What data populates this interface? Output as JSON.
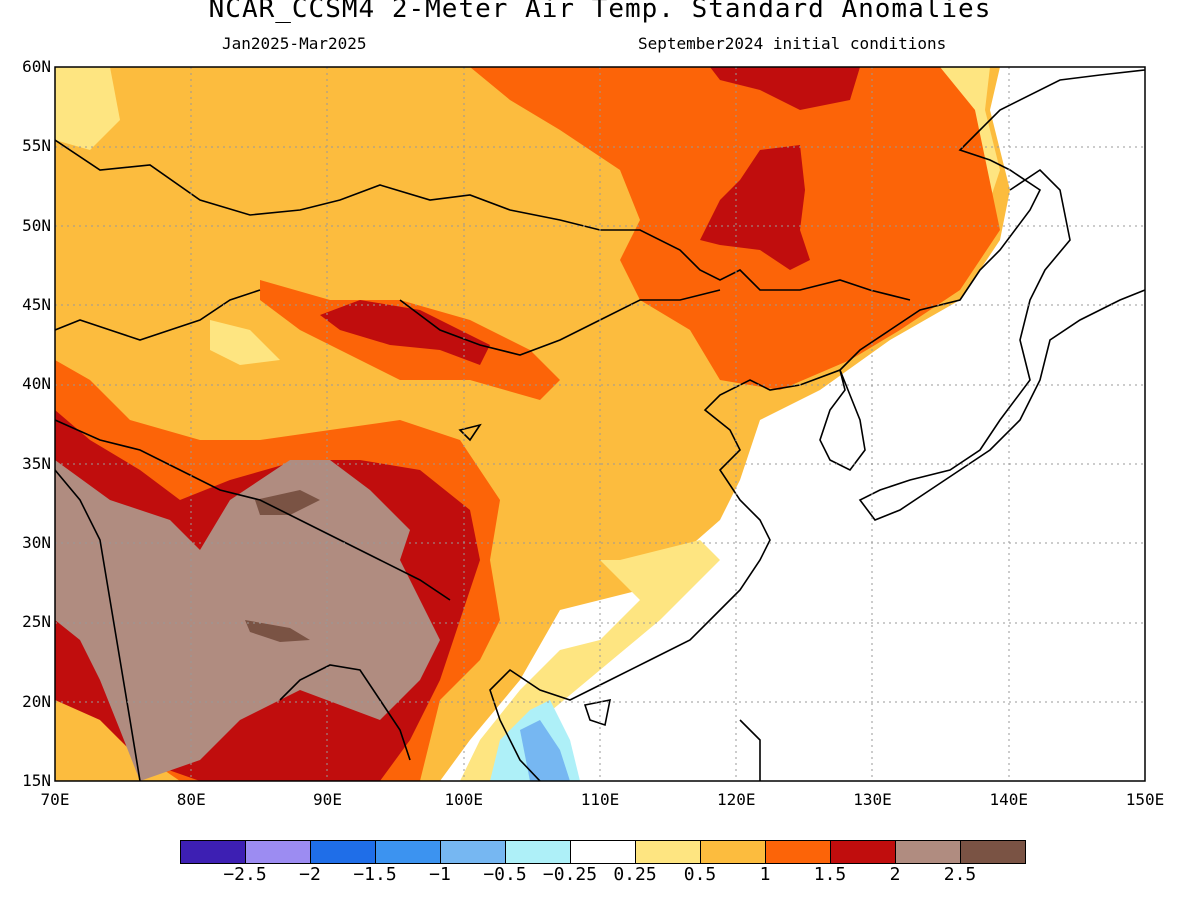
{
  "title": "NCAR_CCSM4 2-Meter Air Temp. Standard Anomalies",
  "subtitle_left": "Jan2025-Mar2025",
  "subtitle_right": "September2024 initial conditions",
  "latitude_labels": [
    "60N",
    "55N",
    "50N",
    "45N",
    "40N",
    "35N",
    "30N",
    "25N",
    "20N",
    "15N"
  ],
  "longitude_labels": [
    "70E",
    "80E",
    "90E",
    "100E",
    "110E",
    "120E",
    "130E",
    "140E",
    "150E"
  ],
  "map_extent": {
    "lon_min": 70,
    "lon_max": 150,
    "lat_min": 15,
    "lat_max": 60
  },
  "colorbar": {
    "colors": [
      "#3d1fb3",
      "#9c8cf2",
      "#1f6ee8",
      "#3c93f0",
      "#76b7f2",
      "#aef0f8",
      "#ffffff",
      "#fee581",
      "#fcbc3e",
      "#fc6408",
      "#c00d0d",
      "#b08c80",
      "#7a5344"
    ],
    "labels": [
      "−2.5",
      "−2",
      "−1.5",
      "−1",
      "−0.5",
      "−0.25",
      "0.25",
      "0.5",
      "1",
      "1.5",
      "2",
      "2.5"
    ]
  }
}
